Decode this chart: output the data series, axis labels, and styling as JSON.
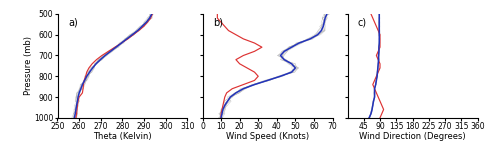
{
  "fig_width": 5.0,
  "fig_height": 1.55,
  "dpi": 100,
  "bg_color": "#ffffff",
  "pressure_levels": [
    1000,
    980,
    960,
    940,
    920,
    900,
    880,
    860,
    840,
    820,
    800,
    780,
    760,
    740,
    720,
    700,
    680,
    660,
    640,
    620,
    600,
    580,
    560,
    540,
    520,
    500
  ],
  "panel_a": {
    "label": "a)",
    "xlabel": "Theta (Kelvin)",
    "xlim": [
      250,
      310
    ],
    "xticks": [
      250,
      260,
      270,
      280,
      290,
      300,
      310
    ],
    "red_theta": [
      258.5,
      258.8,
      259.0,
      259.2,
      259.5,
      260.0,
      261.5,
      261.8,
      262.0,
      262.3,
      263.0,
      263.5,
      264.5,
      266.0,
      268.0,
      270.5,
      273.5,
      276.5,
      279.5,
      282.5,
      285.0,
      287.5,
      289.8,
      291.5,
      293.0,
      293.8
    ],
    "blue_theta": [
      257.8,
      258.2,
      258.5,
      258.8,
      259.2,
      259.5,
      260.0,
      260.8,
      261.5,
      262.5,
      263.5,
      264.8,
      266.2,
      267.8,
      269.8,
      272.0,
      274.5,
      277.0,
      279.5,
      282.0,
      284.5,
      287.0,
      289.0,
      291.0,
      292.5,
      293.5
    ]
  },
  "panel_b": {
    "label": "b)",
    "xlabel": "Wind Speed (Knots)",
    "xlim": [
      0,
      70
    ],
    "xticks": [
      0,
      10,
      20,
      30,
      40,
      50,
      60,
      70
    ],
    "red_speed": [
      10.0,
      10.0,
      10.5,
      11.0,
      11.5,
      12.0,
      13.0,
      16.0,
      22.0,
      28.0,
      30.0,
      28.0,
      24.0,
      20.0,
      18.0,
      22.0,
      28.0,
      32.0,
      28.0,
      22.0,
      18.0,
      14.0,
      12.0,
      10.0,
      8.0,
      8.0
    ],
    "blue_speed": [
      10.0,
      10.5,
      11.0,
      12.0,
      13.5,
      15.0,
      18.0,
      22.0,
      28.0,
      35.0,
      42.0,
      48.0,
      50.0,
      48.0,
      44.0,
      42.0,
      44.0,
      48.0,
      52.0,
      58.0,
      62.0,
      64.0,
      65.0,
      65.5,
      66.0,
      67.0
    ],
    "grey_spread": 2.0
  },
  "panel_c": {
    "label": "c)",
    "xlabel": "Wind Direction (Degrees)",
    "xlim": [
      0,
      360
    ],
    "xticks": [
      45,
      90,
      135,
      180,
      225,
      270,
      315,
      360
    ],
    "xticklabels": [
      "45",
      "90",
      "135",
      "180",
      "225",
      "270",
      "315",
      "360"
    ],
    "red_dir": [
      90,
      95,
      100,
      95,
      90,
      85,
      80,
      75,
      70,
      75,
      80,
      85,
      90,
      90,
      85,
      80,
      85,
      90,
      90,
      90,
      90,
      85,
      80,
      75,
      70,
      65
    ],
    "blue_dir": [
      60,
      65,
      68,
      70,
      72,
      75,
      75,
      75,
      78,
      80,
      82,
      83,
      84,
      85,
      86,
      86,
      87,
      87,
      88,
      88,
      88,
      88,
      88,
      88,
      88,
      88
    ]
  },
  "red_color": "#dd3333",
  "blue_color": "#2233bb",
  "grey_color": "#aaaaaa",
  "ylabel": "Pressure (mb)",
  "ylim": [
    1000,
    500
  ],
  "yticks": [
    500,
    600,
    700,
    800,
    900,
    1000
  ],
  "tick_fontsize": 5.5,
  "label_fontsize": 6.0,
  "panel_label_fontsize": 7.0,
  "linewidth_red": 0.85,
  "linewidth_blue": 1.1,
  "linewidth_grey": 0.35
}
